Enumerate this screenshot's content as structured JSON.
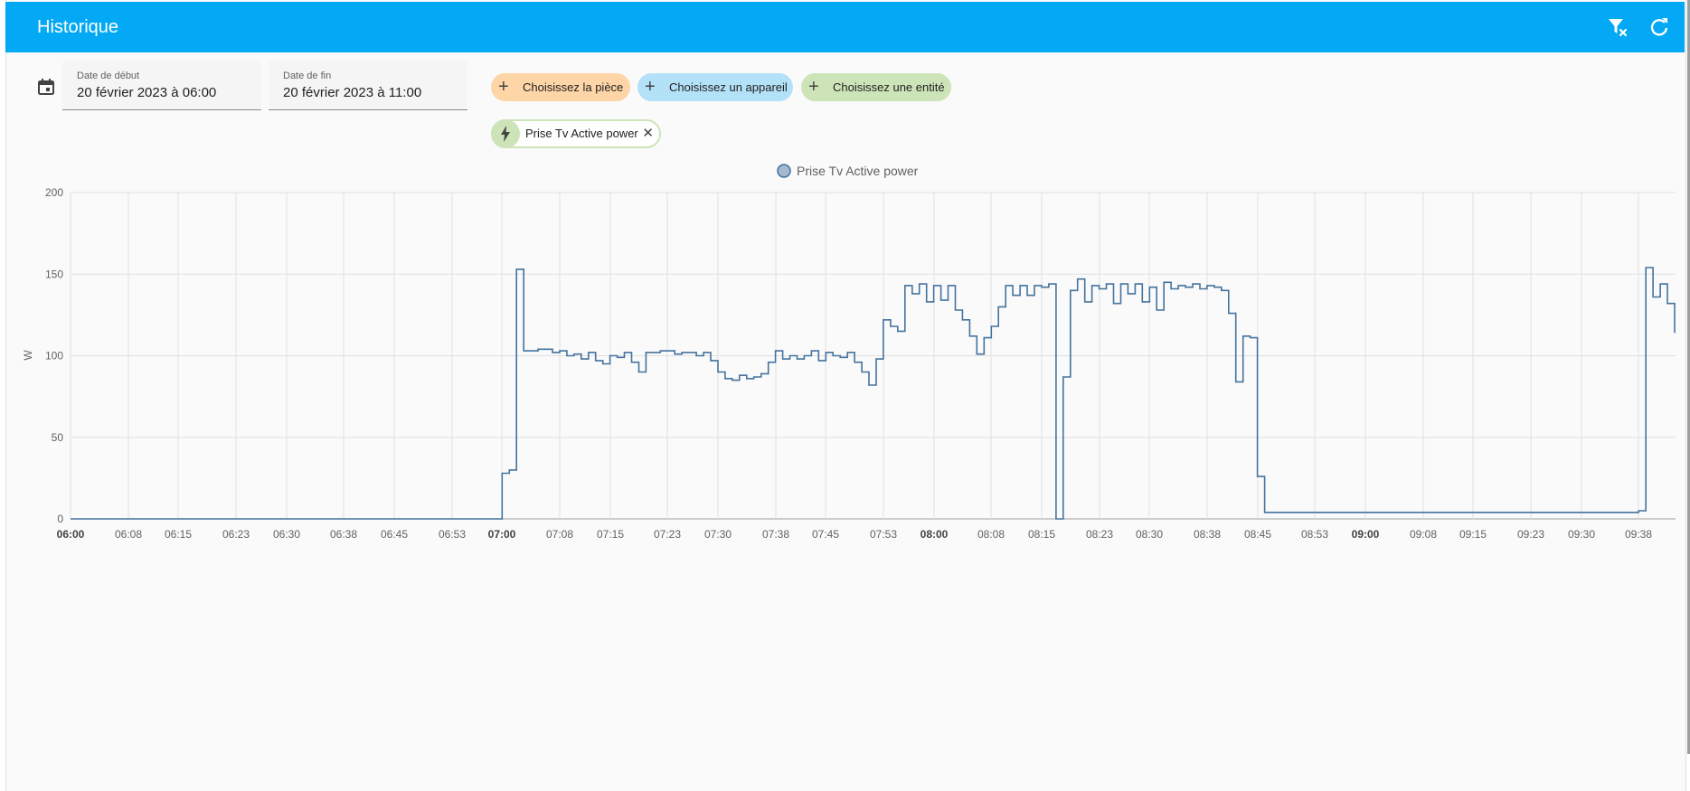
{
  "topbar": {
    "title": "Historique",
    "actions": [
      {
        "name": "filter-remove-icon"
      },
      {
        "name": "refresh-icon"
      }
    ]
  },
  "colors": {
    "header": "#03a9f4",
    "series": "#44739e",
    "chip_area": "#fdd5a6",
    "chip_device": "#b3e1f7",
    "chip_entity": "#cde4b9"
  },
  "filters": {
    "calendar_icon": "calendar-icon",
    "start": {
      "label": "Date de début",
      "value": "20 février 2023 à 06:00"
    },
    "end": {
      "label": "Date de fin",
      "value": "20 février 2023 à 11:00"
    },
    "area_chip": "Choisissez la pièce",
    "device_chip": "Choisissez un appareil",
    "entity_chip": "Choisissez une entité",
    "selected_entity": {
      "label": "Prise Tv Active power",
      "icon": "flash-icon",
      "remove_icon": "close-icon"
    }
  },
  "chart_data": {
    "type": "line",
    "step": true,
    "ylabel": "W",
    "ylim": [
      0,
      200
    ],
    "yticks": [
      0,
      50,
      100,
      150,
      200
    ],
    "xlim": [
      "06:00",
      "09:43"
    ],
    "xticks": [
      "06:00",
      "06:08",
      "06:15",
      "06:23",
      "06:30",
      "06:38",
      "06:45",
      "06:53",
      "07:00",
      "07:08",
      "07:15",
      "07:23",
      "07:30",
      "07:38",
      "07:45",
      "07:53",
      "08:00",
      "08:08",
      "08:15",
      "08:23",
      "08:30",
      "08:38",
      "08:45",
      "08:53",
      "09:00",
      "09:08",
      "09:15",
      "09:23",
      "09:30",
      "09:38"
    ],
    "bold_ticks": [
      "06:00",
      "07:00",
      "08:00",
      "09:00"
    ],
    "grid": true,
    "legend": "top-center",
    "series": [
      {
        "name": "Prise Tv Active power",
        "points": [
          [
            "06:00",
            0
          ],
          [
            "07:00",
            28
          ],
          [
            "07:01",
            30
          ],
          [
            "07:02",
            153
          ],
          [
            "07:03",
            103
          ],
          [
            "07:05",
            104
          ],
          [
            "07:07",
            102
          ],
          [
            "07:08",
            103
          ],
          [
            "07:09",
            100
          ],
          [
            "07:10",
            101
          ],
          [
            "07:11",
            98
          ],
          [
            "07:12",
            102
          ],
          [
            "07:13",
            97
          ],
          [
            "07:14",
            95
          ],
          [
            "07:15",
            100
          ],
          [
            "07:16",
            99
          ],
          [
            "07:17",
            102
          ],
          [
            "07:18",
            96
          ],
          [
            "07:19",
            90
          ],
          [
            "07:20",
            102
          ],
          [
            "07:22",
            103
          ],
          [
            "07:24",
            101
          ],
          [
            "07:25",
            102
          ],
          [
            "07:27",
            100
          ],
          [
            "07:28",
            102
          ],
          [
            "07:29",
            97
          ],
          [
            "07:30",
            90
          ],
          [
            "07:31",
            86
          ],
          [
            "07:32",
            85
          ],
          [
            "07:33",
            88
          ],
          [
            "07:34",
            86
          ],
          [
            "07:35",
            87
          ],
          [
            "07:36",
            89
          ],
          [
            "07:37",
            96
          ],
          [
            "07:38",
            103
          ],
          [
            "07:39",
            98
          ],
          [
            "07:40",
            100
          ],
          [
            "07:41",
            98
          ],
          [
            "07:42",
            100
          ],
          [
            "07:43",
            103
          ],
          [
            "07:44",
            97
          ],
          [
            "07:45",
            102
          ],
          [
            "07:46",
            100
          ],
          [
            "07:47",
            99
          ],
          [
            "07:48",
            102
          ],
          [
            "07:49",
            96
          ],
          [
            "07:50",
            90
          ],
          [
            "07:51",
            82
          ],
          [
            "07:52",
            98
          ],
          [
            "07:53",
            122
          ],
          [
            "07:54",
            118
          ],
          [
            "07:55",
            115
          ],
          [
            "07:56",
            143
          ],
          [
            "07:57",
            138
          ],
          [
            "07:58",
            144
          ],
          [
            "07:59",
            133
          ],
          [
            "08:00",
            143
          ],
          [
            "08:01",
            134
          ],
          [
            "08:02",
            143
          ],
          [
            "08:03",
            128
          ],
          [
            "08:04",
            122
          ],
          [
            "08:05",
            112
          ],
          [
            "08:06",
            101
          ],
          [
            "08:07",
            111
          ],
          [
            "08:08",
            118
          ],
          [
            "08:09",
            130
          ],
          [
            "08:10",
            143
          ],
          [
            "08:11",
            137
          ],
          [
            "08:12",
            143
          ],
          [
            "08:13",
            137
          ],
          [
            "08:14",
            143
          ],
          [
            "08:15",
            142
          ],
          [
            "08:16",
            144
          ],
          [
            "08:17",
            0
          ],
          [
            "08:18",
            87
          ],
          [
            "08:19",
            140
          ],
          [
            "08:20",
            147
          ],
          [
            "08:21",
            133
          ],
          [
            "08:22",
            143
          ],
          [
            "08:23",
            141
          ],
          [
            "08:24",
            144
          ],
          [
            "08:25",
            132
          ],
          [
            "08:26",
            144
          ],
          [
            "08:27",
            138
          ],
          [
            "08:28",
            144
          ],
          [
            "08:29",
            133
          ],
          [
            "08:30",
            142
          ],
          [
            "08:31",
            128
          ],
          [
            "08:32",
            145
          ],
          [
            "08:33",
            141
          ],
          [
            "08:34",
            143
          ],
          [
            "08:35",
            142
          ],
          [
            "08:36",
            144
          ],
          [
            "08:37",
            141
          ],
          [
            "08:38",
            143
          ],
          [
            "08:39",
            142
          ],
          [
            "08:40",
            140
          ],
          [
            "08:41",
            126
          ],
          [
            "08:42",
            84
          ],
          [
            "08:43",
            112
          ],
          [
            "08:44",
            111
          ],
          [
            "08:45",
            26
          ],
          [
            "08:46",
            4
          ],
          [
            "09:38",
            5
          ],
          [
            "09:39",
            154
          ],
          [
            "09:40",
            136
          ],
          [
            "09:41",
            144
          ],
          [
            "09:42",
            132
          ],
          [
            "09:43",
            114
          ]
        ]
      }
    ]
  }
}
